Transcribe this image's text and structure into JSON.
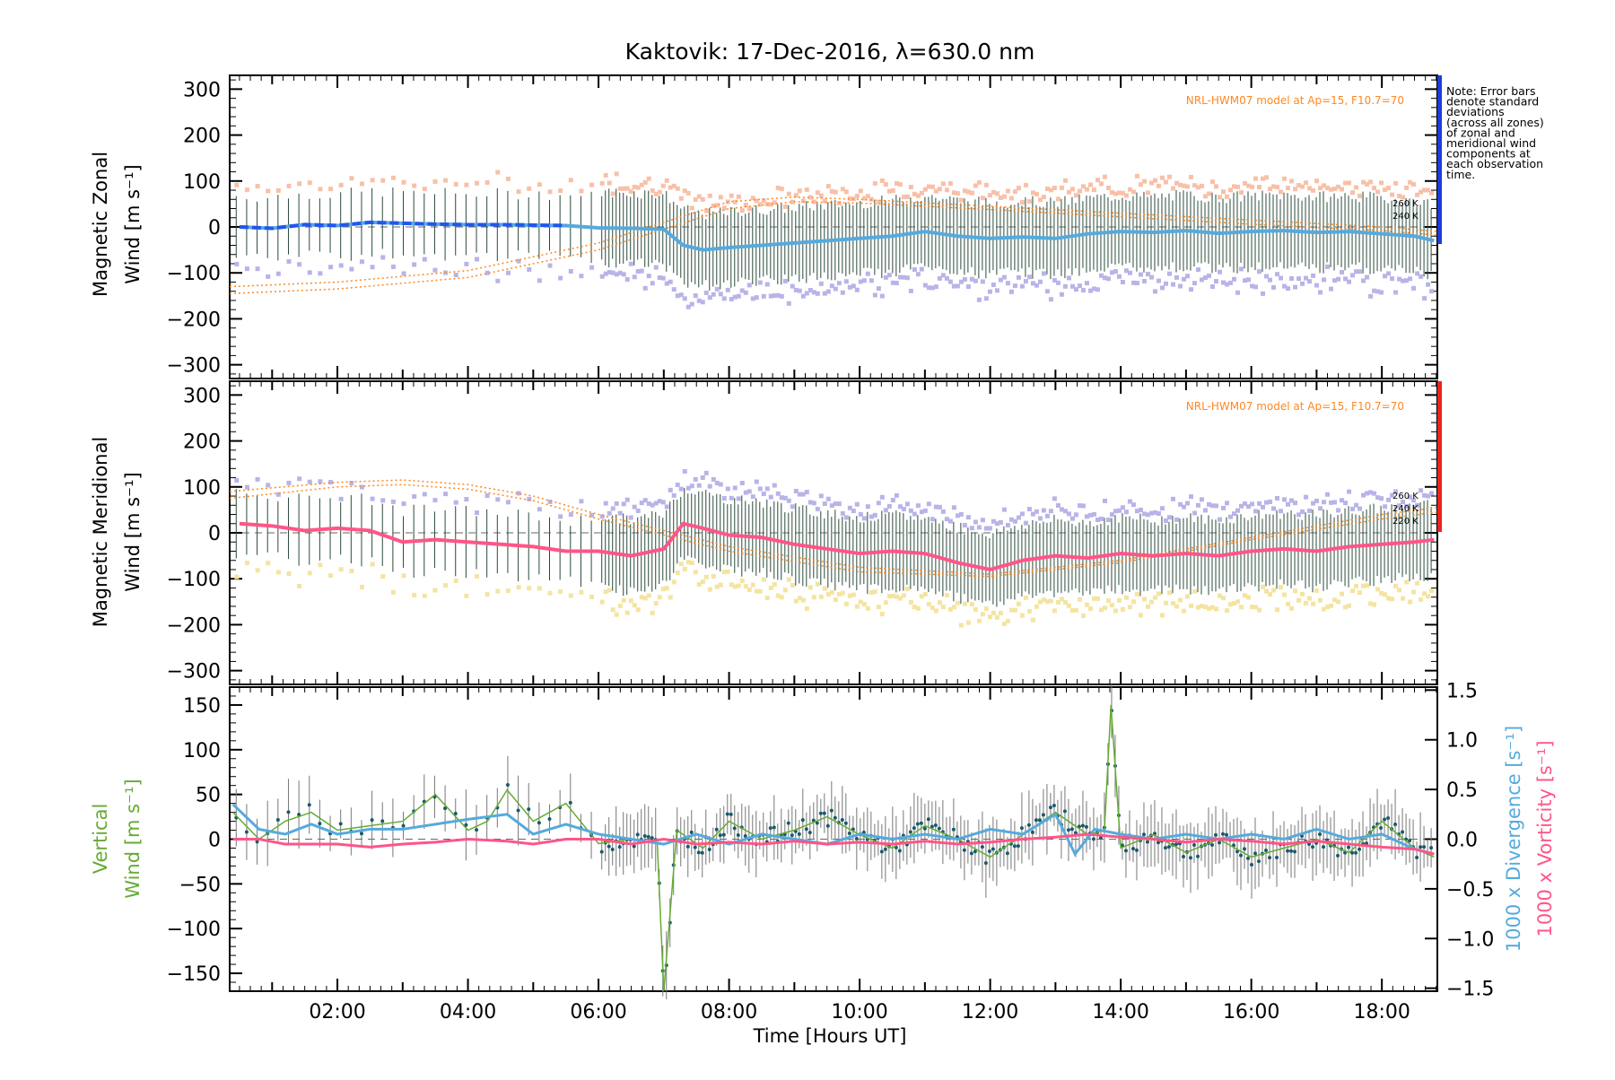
{
  "title": "Kaktovik: 17-Dec-2016, λ=630.0 nm",
  "xlabel": "Time [Hours UT]",
  "note_lines": [
    "Note: Error bars",
    "denote standard",
    "deviations",
    "(across all zones)",
    "of zonal and",
    "meridional wind",
    "components at",
    "each observation",
    "time."
  ],
  "colors": {
    "zonal_mean": "#55aadd",
    "zonal_early": "#2255ee",
    "meridional_mean": "#ff5588",
    "vertical": "#66aa33",
    "divergence": "#55aadd",
    "vorticity": "#ff5588",
    "model": "#ff8822",
    "zonal_bar": "#1e3cdc",
    "meridional_bar": "#ee2222"
  },
  "chart_data": [
    {
      "type": "line",
      "panel": "zonal",
      "ylabel_lines": [
        "Magnetic Zonal",
        "Wind [m s⁻¹]"
      ],
      "ylim": [
        -330,
        330
      ],
      "yticks": [
        300,
        200,
        100,
        0,
        -100,
        -200,
        -300
      ],
      "xlim": [
        0.35,
        18.85
      ],
      "model_label": "NRL-HWM07 model at Ap=15, F10.7=70",
      "model_tags": [
        "260 K",
        "240 K"
      ],
      "series": [
        {
          "name": "mean",
          "x": [
            0.5,
            1.0,
            1.5,
            2.0,
            2.5,
            3.0,
            3.5,
            4.0,
            4.5,
            5.0,
            5.5,
            6.0,
            6.5,
            7.0,
            7.3,
            7.6,
            8.0,
            8.5,
            9.0,
            9.5,
            10.0,
            10.5,
            11.0,
            11.5,
            12.0,
            12.5,
            13.0,
            13.5,
            14.0,
            14.5,
            15.0,
            15.5,
            16.0,
            16.5,
            17.0,
            17.5,
            18.0,
            18.5,
            18.8
          ],
          "values": [
            0,
            -3,
            5,
            3,
            10,
            8,
            6,
            5,
            5,
            4,
            3,
            -2,
            -3,
            -5,
            -40,
            -50,
            -45,
            -40,
            -35,
            -30,
            -25,
            -20,
            -10,
            -20,
            -25,
            -22,
            -25,
            -15,
            -10,
            -12,
            -8,
            -14,
            -10,
            -8,
            -12,
            -10,
            -15,
            -20,
            -30
          ]
        }
      ],
      "models": [
        {
          "x": [
            0.35,
            2,
            4,
            6,
            8,
            9,
            10,
            12,
            14,
            16,
            18,
            18.85
          ],
          "values": [
            -130,
            -120,
            -95,
            -35,
            55,
            65,
            60,
            45,
            30,
            15,
            0,
            -10
          ]
        },
        {
          "x": [
            0.35,
            2,
            4,
            6,
            8,
            9,
            10,
            12,
            14,
            16,
            18,
            18.85
          ],
          "values": [
            -145,
            -135,
            -110,
            -50,
            40,
            55,
            52,
            38,
            22,
            6,
            -8,
            -18
          ]
        }
      ]
    },
    {
      "type": "line",
      "panel": "meridional",
      "ylabel_lines": [
        "Magnetic Meridional",
        "Wind [m s⁻¹]"
      ],
      "ylim": [
        -330,
        330
      ],
      "yticks": [
        300,
        200,
        100,
        0,
        -100,
        -200,
        -300
      ],
      "xlim": [
        0.35,
        18.85
      ],
      "model_label": "NRL-HWM07 model at Ap=15, F10.7=70",
      "model_tags": [
        "260 K",
        "240 K",
        "220 K"
      ],
      "series": [
        {
          "name": "mean",
          "x": [
            0.5,
            1.0,
            1.5,
            2.0,
            2.5,
            3.0,
            3.5,
            4.0,
            4.5,
            5.0,
            5.5,
            6.0,
            6.5,
            7.0,
            7.3,
            7.6,
            8.0,
            8.5,
            9.0,
            9.5,
            10.0,
            10.5,
            11.0,
            11.5,
            12.0,
            12.5,
            13.0,
            13.5,
            14.0,
            14.5,
            15.0,
            15.5,
            16.0,
            16.5,
            17.0,
            17.5,
            18.0,
            18.5,
            18.8
          ],
          "values": [
            20,
            15,
            5,
            10,
            5,
            -20,
            -15,
            -20,
            -25,
            -30,
            -40,
            -40,
            -50,
            -35,
            20,
            10,
            -5,
            -10,
            -25,
            -35,
            -45,
            -40,
            -45,
            -65,
            -80,
            -60,
            -50,
            -55,
            -45,
            -50,
            -45,
            -50,
            -40,
            -35,
            -40,
            -30,
            -25,
            -20,
            -15
          ]
        }
      ],
      "models": [
        {
          "x": [
            0.35,
            2,
            3,
            4,
            5,
            6,
            8,
            10,
            12,
            14,
            16,
            18,
            18.85
          ],
          "values": [
            90,
            110,
            115,
            105,
            80,
            40,
            -30,
            -75,
            -90,
            -60,
            -10,
            40,
            55
          ]
        },
        {
          "x": [
            0.35,
            2,
            3,
            4,
            5,
            6,
            8,
            10,
            12,
            14,
            16,
            18,
            18.85
          ],
          "values": [
            75,
            100,
            105,
            95,
            70,
            30,
            -40,
            -85,
            -95,
            -65,
            -15,
            30,
            45
          ]
        }
      ]
    },
    {
      "type": "line",
      "panel": "vertical",
      "ylabel_lines": [
        "Vertical",
        "Wind [m s⁻¹]"
      ],
      "ylabel_right_lines": [
        "1000 x Divergence [s⁻¹]",
        "1000 x Vorticity [s⁻¹]"
      ],
      "ylim": [
        -170,
        170
      ],
      "yticks": [
        150,
        100,
        50,
        0,
        -50,
        -100,
        -150
      ],
      "ylim_right": [
        -1.53,
        1.53
      ],
      "yticks_right": [
        "1.5",
        "1.0",
        "0.5",
        "0.0",
        "-0.5",
        "-1.0",
        "-1.5"
      ],
      "xlim": [
        0.35,
        18.85
      ],
      "xticks": [
        "02:00",
        "04:00",
        "06:00",
        "08:00",
        "10:00",
        "12:00",
        "14:00",
        "16:00",
        "18:00"
      ],
      "series": [
        {
          "name": "vertical",
          "x": [
            0.4,
            0.8,
            1.2,
            1.6,
            2.0,
            2.5,
            3.0,
            3.5,
            4.0,
            4.3,
            4.6,
            5.0,
            5.5,
            6.0,
            6.5,
            6.9,
            7.0,
            7.2,
            7.6,
            8.0,
            8.5,
            9.0,
            9.5,
            10.0,
            10.5,
            11.0,
            11.5,
            12.0,
            12.5,
            13.0,
            13.5,
            13.75,
            13.85,
            14.0,
            14.5,
            15.0,
            15.5,
            16.0,
            16.5,
            17.0,
            17.5,
            18.0,
            18.5,
            18.8
          ],
          "values": [
            30,
            0,
            20,
            30,
            10,
            15,
            20,
            50,
            10,
            20,
            55,
            20,
            40,
            -5,
            0,
            -5,
            -170,
            10,
            -10,
            20,
            0,
            10,
            25,
            5,
            -10,
            15,
            0,
            -20,
            5,
            30,
            5,
            10,
            150,
            -10,
            5,
            -15,
            0,
            -20,
            -10,
            0,
            -15,
            20,
            -10,
            -20
          ]
        },
        {
          "name": "divergence",
          "x": [
            0.4,
            0.8,
            1.2,
            1.6,
            2.0,
            2.5,
            3.0,
            3.5,
            4.0,
            4.6,
            5.0,
            5.5,
            6.0,
            6.5,
            7.0,
            7.5,
            8.0,
            8.5,
            9.0,
            9.5,
            10.0,
            10.5,
            11.0,
            11.5,
            12.0,
            12.5,
            13.0,
            13.3,
            13.6,
            14.0,
            14.5,
            15.0,
            15.5,
            16.0,
            16.5,
            17.0,
            17.5,
            18.0,
            18.5,
            18.8
          ],
          "values": [
            0.35,
            0.1,
            0.05,
            0.15,
            0.05,
            0.1,
            0.1,
            0.15,
            0.2,
            0.25,
            0.05,
            0.15,
            0.05,
            0.0,
            -0.05,
            0.05,
            -0.05,
            0.05,
            0.0,
            -0.05,
            0.05,
            0.0,
            0.05,
            0.0,
            0.1,
            0.05,
            0.25,
            -0.15,
            0.1,
            0.05,
            0.0,
            0.05,
            0.0,
            0.05,
            0.0,
            0.1,
            0.0,
            0.05,
            -0.1,
            -0.15
          ]
        },
        {
          "name": "vorticity",
          "x": [
            0.4,
            0.8,
            1.2,
            1.6,
            2.0,
            2.5,
            3.0,
            3.5,
            4.0,
            4.6,
            5.0,
            5.5,
            6.0,
            6.5,
            7.0,
            7.5,
            8.0,
            8.5,
            9.0,
            9.5,
            10.0,
            10.5,
            11.0,
            11.5,
            12.0,
            12.5,
            13.0,
            13.5,
            14.0,
            14.5,
            15.0,
            15.5,
            16.0,
            16.5,
            17.0,
            17.5,
            18.0,
            18.5,
            18.8
          ],
          "values": [
            0.0,
            0.0,
            -0.05,
            -0.05,
            -0.05,
            -0.08,
            -0.05,
            -0.03,
            0.0,
            -0.02,
            -0.05,
            0.0,
            0.0,
            -0.05,
            0.0,
            -0.05,
            -0.03,
            -0.05,
            -0.02,
            -0.05,
            -0.03,
            -0.05,
            -0.02,
            -0.05,
            -0.03,
            0.0,
            0.02,
            0.05,
            0.02,
            0.0,
            -0.03,
            0.0,
            -0.02,
            -0.05,
            -0.02,
            -0.05,
            -0.08,
            -0.1,
            -0.15
          ]
        }
      ]
    }
  ]
}
